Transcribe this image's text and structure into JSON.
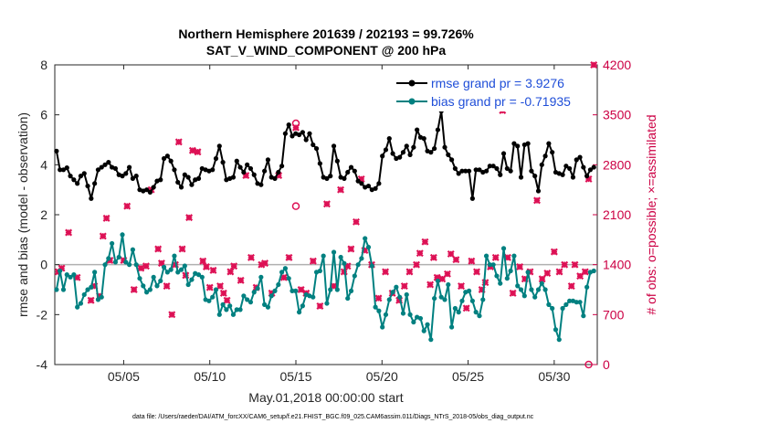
{
  "chart_data": {
    "type": "line",
    "title": "Northern Hemisphere 201639 / 202193 = 99.726%",
    "subtitle": "SAT_V_WIND_COMPONENT @ 200 hPa",
    "xlabel": "May.01,2018 00:00:00 start",
    "ylabel": "rmse and bias (model - observation)",
    "y2label": "# of obs: o=possible; ×=assimilated",
    "footer": "data file: /Users/raeder/DAI/ATM_forcXX/CAM6_setup/f.e21.FHIST_BGC.f09_025.CAM6assim.011/Diags_NTrS_2018-05/obs_diag_output.nc",
    "xlim": [
      1,
      32.5
    ],
    "ylim": [
      -4,
      8
    ],
    "y2lim": [
      0,
      4200
    ],
    "x_ticks": [
      5,
      10,
      15,
      20,
      25,
      30
    ],
    "x_tick_labels": [
      "05/05",
      "05/10",
      "05/15",
      "05/20",
      "05/25",
      "05/30"
    ],
    "y_ticks": [
      -4,
      -2,
      0,
      2,
      4,
      6,
      8
    ],
    "y_tick_labels": [
      "-4",
      "-2",
      "0",
      "2",
      "4",
      "6",
      "8"
    ],
    "y2_ticks": [
      0,
      700,
      1400,
      2100,
      2800,
      3500,
      4200
    ],
    "y2_tick_labels": [
      "0",
      "700",
      "1400",
      "2100",
      "2800",
      "3500",
      "4200"
    ],
    "legend_position": "top-right",
    "colors": {
      "rmse": "#000000",
      "bias": "#008080",
      "obs": "#dd1155",
      "zero": "#b0b0b0",
      "legend_text": "#1f4ed8"
    },
    "series": [
      {
        "name": "rmse grand pr = 3.9276",
        "color": "#000000",
        "values": [
          4.55,
          3.8,
          3.8,
          3.88,
          3.55,
          3.4,
          3.25,
          3.55,
          3.65,
          3.15,
          2.65,
          3.25,
          3.8,
          3.9,
          4.0,
          4.1,
          3.9,
          3.85,
          3.6,
          3.55,
          3.65,
          3.9,
          3.45,
          3.55,
          3.0,
          2.95,
          3.0,
          2.9,
          3.1,
          3.35,
          3.4,
          4.25,
          4.35,
          4.15,
          3.8,
          3.3,
          3.1,
          3.6,
          3.5,
          3.2,
          3.4,
          3.45,
          3.85,
          3.8,
          3.75,
          3.8,
          4.25,
          4.75,
          4.1,
          3.4,
          3.45,
          3.5,
          4.15,
          3.9,
          3.7,
          4.0,
          3.85,
          3.6,
          3.25,
          3.2,
          3.75,
          4.2,
          3.5,
          3.45,
          3.7,
          3.95,
          5.25,
          5.6,
          5.15,
          5.25,
          5.2,
          5.3,
          5.0,
          5.25,
          4.8,
          4.65,
          4.05,
          3.5,
          3.45,
          3.55,
          4.75,
          4.15,
          3.5,
          3.45,
          3.7,
          3.9,
          3.75,
          3.35,
          3.25,
          3.1,
          3.15,
          3.0,
          3.05,
          3.25,
          4.35,
          4.6,
          5.05,
          4.45,
          4.25,
          4.3,
          4.5,
          4.75,
          4.4,
          4.7,
          5.4,
          5.1,
          5.05,
          4.55,
          4.5,
          4.65,
          5.4,
          6.15,
          4.7,
          4.4,
          4.2,
          3.85,
          3.65,
          3.75,
          3.75,
          3.75,
          2.65,
          3.8,
          3.8,
          3.7,
          3.75,
          3.95,
          3.95,
          3.85,
          3.6,
          4.45,
          3.85,
          3.75,
          4.85,
          4.75,
          3.5,
          4.8,
          4.85,
          3.75,
          3.55,
          2.95,
          4.0,
          4.35,
          4.85,
          4.5,
          3.7,
          3.65,
          3.6,
          3.95,
          3.85,
          3.5,
          4.2,
          4.3,
          3.9,
          3.55,
          3.8,
          3.9
        ]
      },
      {
        "name": "bias grand pr = -0.71935",
        "color": "#008080",
        "values": [
          -1.0,
          -0.25,
          -1.0,
          -0.4,
          -0.5,
          -0.4,
          -1.7,
          -1.55,
          -1.2,
          -1.0,
          -0.9,
          -0.3,
          -1.4,
          -1.3,
          0.0,
          0.25,
          0.85,
          0.1,
          0.3,
          1.2,
          0.1,
          0.0,
          0.6,
          0.0,
          -0.55,
          -0.85,
          -1.1,
          -1.0,
          -0.5,
          -0.85,
          -0.65,
          -0.1,
          -0.3,
          -0.2,
          0.35,
          -0.3,
          -0.2,
          -0.05,
          -0.8,
          -0.6,
          -0.35,
          -0.4,
          -0.5,
          -1.4,
          -1.45,
          -1.3,
          -1.0,
          -2.0,
          -1.6,
          -1.8,
          -1.65,
          -2.0,
          -1.8,
          -1.8,
          -1.25,
          -1.4,
          -1.5,
          -1.1,
          -0.95,
          -0.5,
          -1.6,
          -1.7,
          -1.25,
          -1.05,
          -0.8,
          -0.3,
          -0.15,
          -0.55,
          -1.05,
          -1.05,
          -1.9,
          -1.65,
          -1.2,
          -1.25,
          -1.3,
          -0.3,
          -0.25,
          0.35,
          -1.55,
          -1.0,
          0.5,
          -1.0,
          0.3,
          0.05,
          -1.35,
          -1.05,
          -0.45,
          0.0,
          0.25,
          1.05,
          0.7,
          -0.05,
          -1.7,
          -1.85,
          -2.5,
          -2.0,
          -1.4,
          -1.1,
          -0.9,
          -1.3,
          -1.95,
          -1.2,
          -2.0,
          -2.3,
          -2.1,
          -2.15,
          -2.65,
          -2.4,
          -3.0,
          -1.35,
          -0.65,
          -1.3,
          -1.4,
          -0.8,
          -2.5,
          -1.75,
          -1.9,
          -1.45,
          -1.1,
          -1.05,
          -1.45,
          -1.9,
          -2.05,
          -1.4,
          0.35,
          0.0,
          0.0,
          -0.45,
          -0.75,
          0.65,
          -0.55,
          -0.25,
          0.35,
          -0.85,
          -1.0,
          -1.25,
          -0.3,
          -1.0,
          -1.3,
          -1.0,
          -0.75,
          -1.0,
          -1.6,
          -1.75,
          -2.6,
          -3.0,
          -1.75,
          -1.6,
          -1.45,
          -1.45,
          -1.5,
          -1.5,
          -2.05,
          -0.9,
          -0.3,
          -0.25
        ]
      },
      {
        "name": "# obs assimilated (×)",
        "color": "#dd1155",
        "axis": "right",
        "x": [
          1.2,
          1.4,
          1.8,
          2.3,
          3.1,
          3.3,
          3.6,
          3.8,
          4.0,
          4.2,
          5.0,
          5.2,
          5.6,
          6.0,
          6.3,
          6.6,
          7.0,
          7.2,
          7.5,
          7.8,
          8.0,
          8.2,
          8.4,
          8.6,
          8.8,
          9.0,
          9.3,
          9.6,
          9.8,
          10.0,
          10.2,
          10.6,
          10.8,
          11.0,
          11.2,
          11.4,
          11.8,
          12.1,
          12.4,
          12.7,
          13.0,
          13.2,
          13.6,
          14.0,
          14.3,
          14.6,
          15.0,
          15.3,
          15.6,
          16.0,
          16.4,
          16.8,
          17.2,
          17.6,
          17.8,
          18.0,
          18.2,
          18.5,
          18.8,
          19.0,
          19.4,
          19.8,
          20.2,
          20.6,
          21.0,
          21.3,
          21.6,
          22.0,
          22.2,
          22.5,
          22.8,
          23.0,
          23.2,
          23.5,
          23.8,
          24.0,
          24.3,
          24.6,
          24.9,
          25.2,
          25.5,
          25.8,
          26.0,
          26.3,
          26.6,
          27.0,
          27.3,
          27.6,
          28.0,
          28.3,
          28.6,
          29.0,
          29.3,
          29.6,
          30.0,
          30.3,
          30.6,
          31.0,
          31.2,
          31.5,
          31.8,
          32.0,
          32.3
        ],
        "values": [
          1300,
          1350,
          1850,
          1220,
          900,
          1100,
          960,
          1800,
          2050,
          1460,
          1460,
          2220,
          1050,
          1350,
          1380,
          2450,
          1620,
          1420,
          1100,
          700,
          1400,
          3120,
          1620,
          1250,
          2060,
          3000,
          2980,
          1450,
          1370,
          1080,
          1320,
          1100,
          1000,
          900,
          1300,
          1380,
          1180,
          2650,
          1500,
          1080,
          1400,
          1420,
          1000,
          2650,
          1220,
          1500,
          3320,
          1050,
          1000,
          1450,
          820,
          2250,
          1100,
          2450,
          1300,
          1380,
          1620,
          2000,
          2600,
          1600,
          1400,
          930,
          1300,
          1000,
          900,
          1100,
          1300,
          1400,
          1560,
          1720,
          1120,
          1500,
          1220,
          1200,
          1270,
          1550,
          1470,
          1100,
          790,
          1450,
          1300,
          1050,
          1150,
          1370,
          1500,
          3560,
          1500,
          1000,
          1370,
          1200,
          1300,
          2300,
          1200,
          1280,
          1580,
          1300,
          1400,
          1100,
          1400,
          1240,
          1300,
          2600,
          4200
        ]
      },
      {
        "name": "# obs possible (o)",
        "color": "#dd1155",
        "axis": "right",
        "x": [
          15,
          15,
          32
        ],
        "values": [
          3380,
          2220,
          0
        ]
      }
    ]
  }
}
